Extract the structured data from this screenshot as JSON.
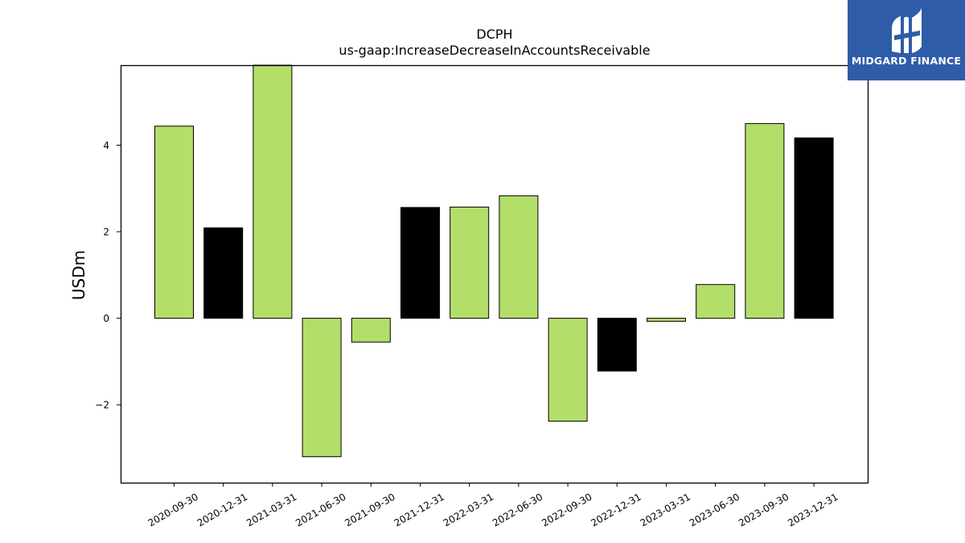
{
  "logo": {
    "text": "MIDGARD FINANCE",
    "icon": "midgard-m-logo-icon",
    "bg_color": "#2f5ca8"
  },
  "chart_data": {
    "type": "bar",
    "title": "DCPH",
    "subtitle": "us-gaap:IncreaseDecreaseInAccountsReceivable",
    "xlabel": "",
    "ylabel": "USDm",
    "ylim": [
      -3.8,
      5.85
    ],
    "yticks": [
      -2,
      0,
      2,
      4
    ],
    "ytick_labels": [
      "−2",
      "0",
      "2",
      "4"
    ],
    "grid": false,
    "categories": [
      "2020-09-30",
      "2020-12-31",
      "2021-03-31",
      "2021-06-30",
      "2021-09-30",
      "2021-12-31",
      "2022-03-31",
      "2022-06-30",
      "2022-09-30",
      "2022-12-31",
      "2023-03-31",
      "2023-06-30",
      "2023-09-30",
      "2023-12-31"
    ],
    "values": [
      4.44,
      2.09,
      5.9,
      -3.2,
      -0.55,
      2.56,
      2.57,
      2.83,
      -2.38,
      -1.22,
      -0.07,
      0.78,
      4.5,
      4.17
    ],
    "bar_colors": [
      "#b3de69",
      "#000000",
      "#b3de69",
      "#b3de69",
      "#b3de69",
      "#000000",
      "#b3de69",
      "#b3de69",
      "#b3de69",
      "#000000",
      "#b3de69",
      "#b3de69",
      "#b3de69",
      "#000000"
    ]
  }
}
